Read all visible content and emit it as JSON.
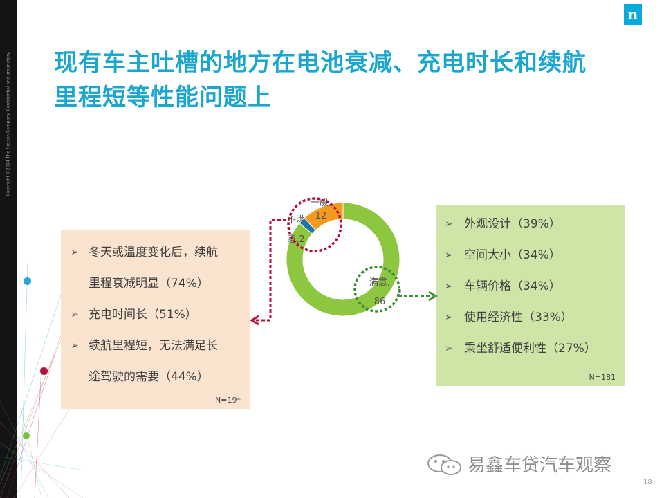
{
  "page": {
    "logo": "n",
    "copyright": "Copyright ©2014 The Nielsen Company. Confidential and proprietary.",
    "title_line1": "现有车主吐槽的地方在电池衰减、充电时长和续航",
    "title_line2": "里程短等性能问题上",
    "page_number": "18",
    "watermark": "易鑫车贷汽车观察"
  },
  "left_panel": {
    "items": [
      {
        "line1": "冬天或温度变化后，续航",
        "line2": "里程衰减明显（74%）"
      },
      {
        "line1": "充电时间长（51%）",
        "line2": ""
      },
      {
        "line1": "续航里程短，无法满足长",
        "line2": "途驾驶的需要（44%）"
      }
    ],
    "n_label": "N=19*"
  },
  "right_panel": {
    "items": [
      "外观设计（39%）",
      "空间大小（34%）",
      "车辆价格（34%）",
      "使用经济性（33%）",
      "乘坐舒适便利性（27%）"
    ],
    "n_label": "N=181"
  },
  "chart_data": {
    "type": "pie",
    "variant": "donut",
    "slices": [
      {
        "label": "一般",
        "value": 12,
        "color": "#f39a1e",
        "label_lines": [
          "一般,",
          "12"
        ]
      },
      {
        "label": "不满意",
        "value": 2,
        "color": "#1f74a8",
        "label_lines": [
          "不满",
          "意,2"
        ]
      },
      {
        "label": "满意",
        "value": 86,
        "color": "#8dc63f",
        "label_lines": [
          "满意,",
          "86"
        ]
      }
    ],
    "start_angle_deg": 90
  },
  "colors": {
    "title": "#1aa6cf",
    "accent_red": "#b5123b",
    "accent_green": "#3f8f3a",
    "left_panel_bg": "#fbe4cf",
    "right_panel_bg": "#cfe4a7"
  }
}
